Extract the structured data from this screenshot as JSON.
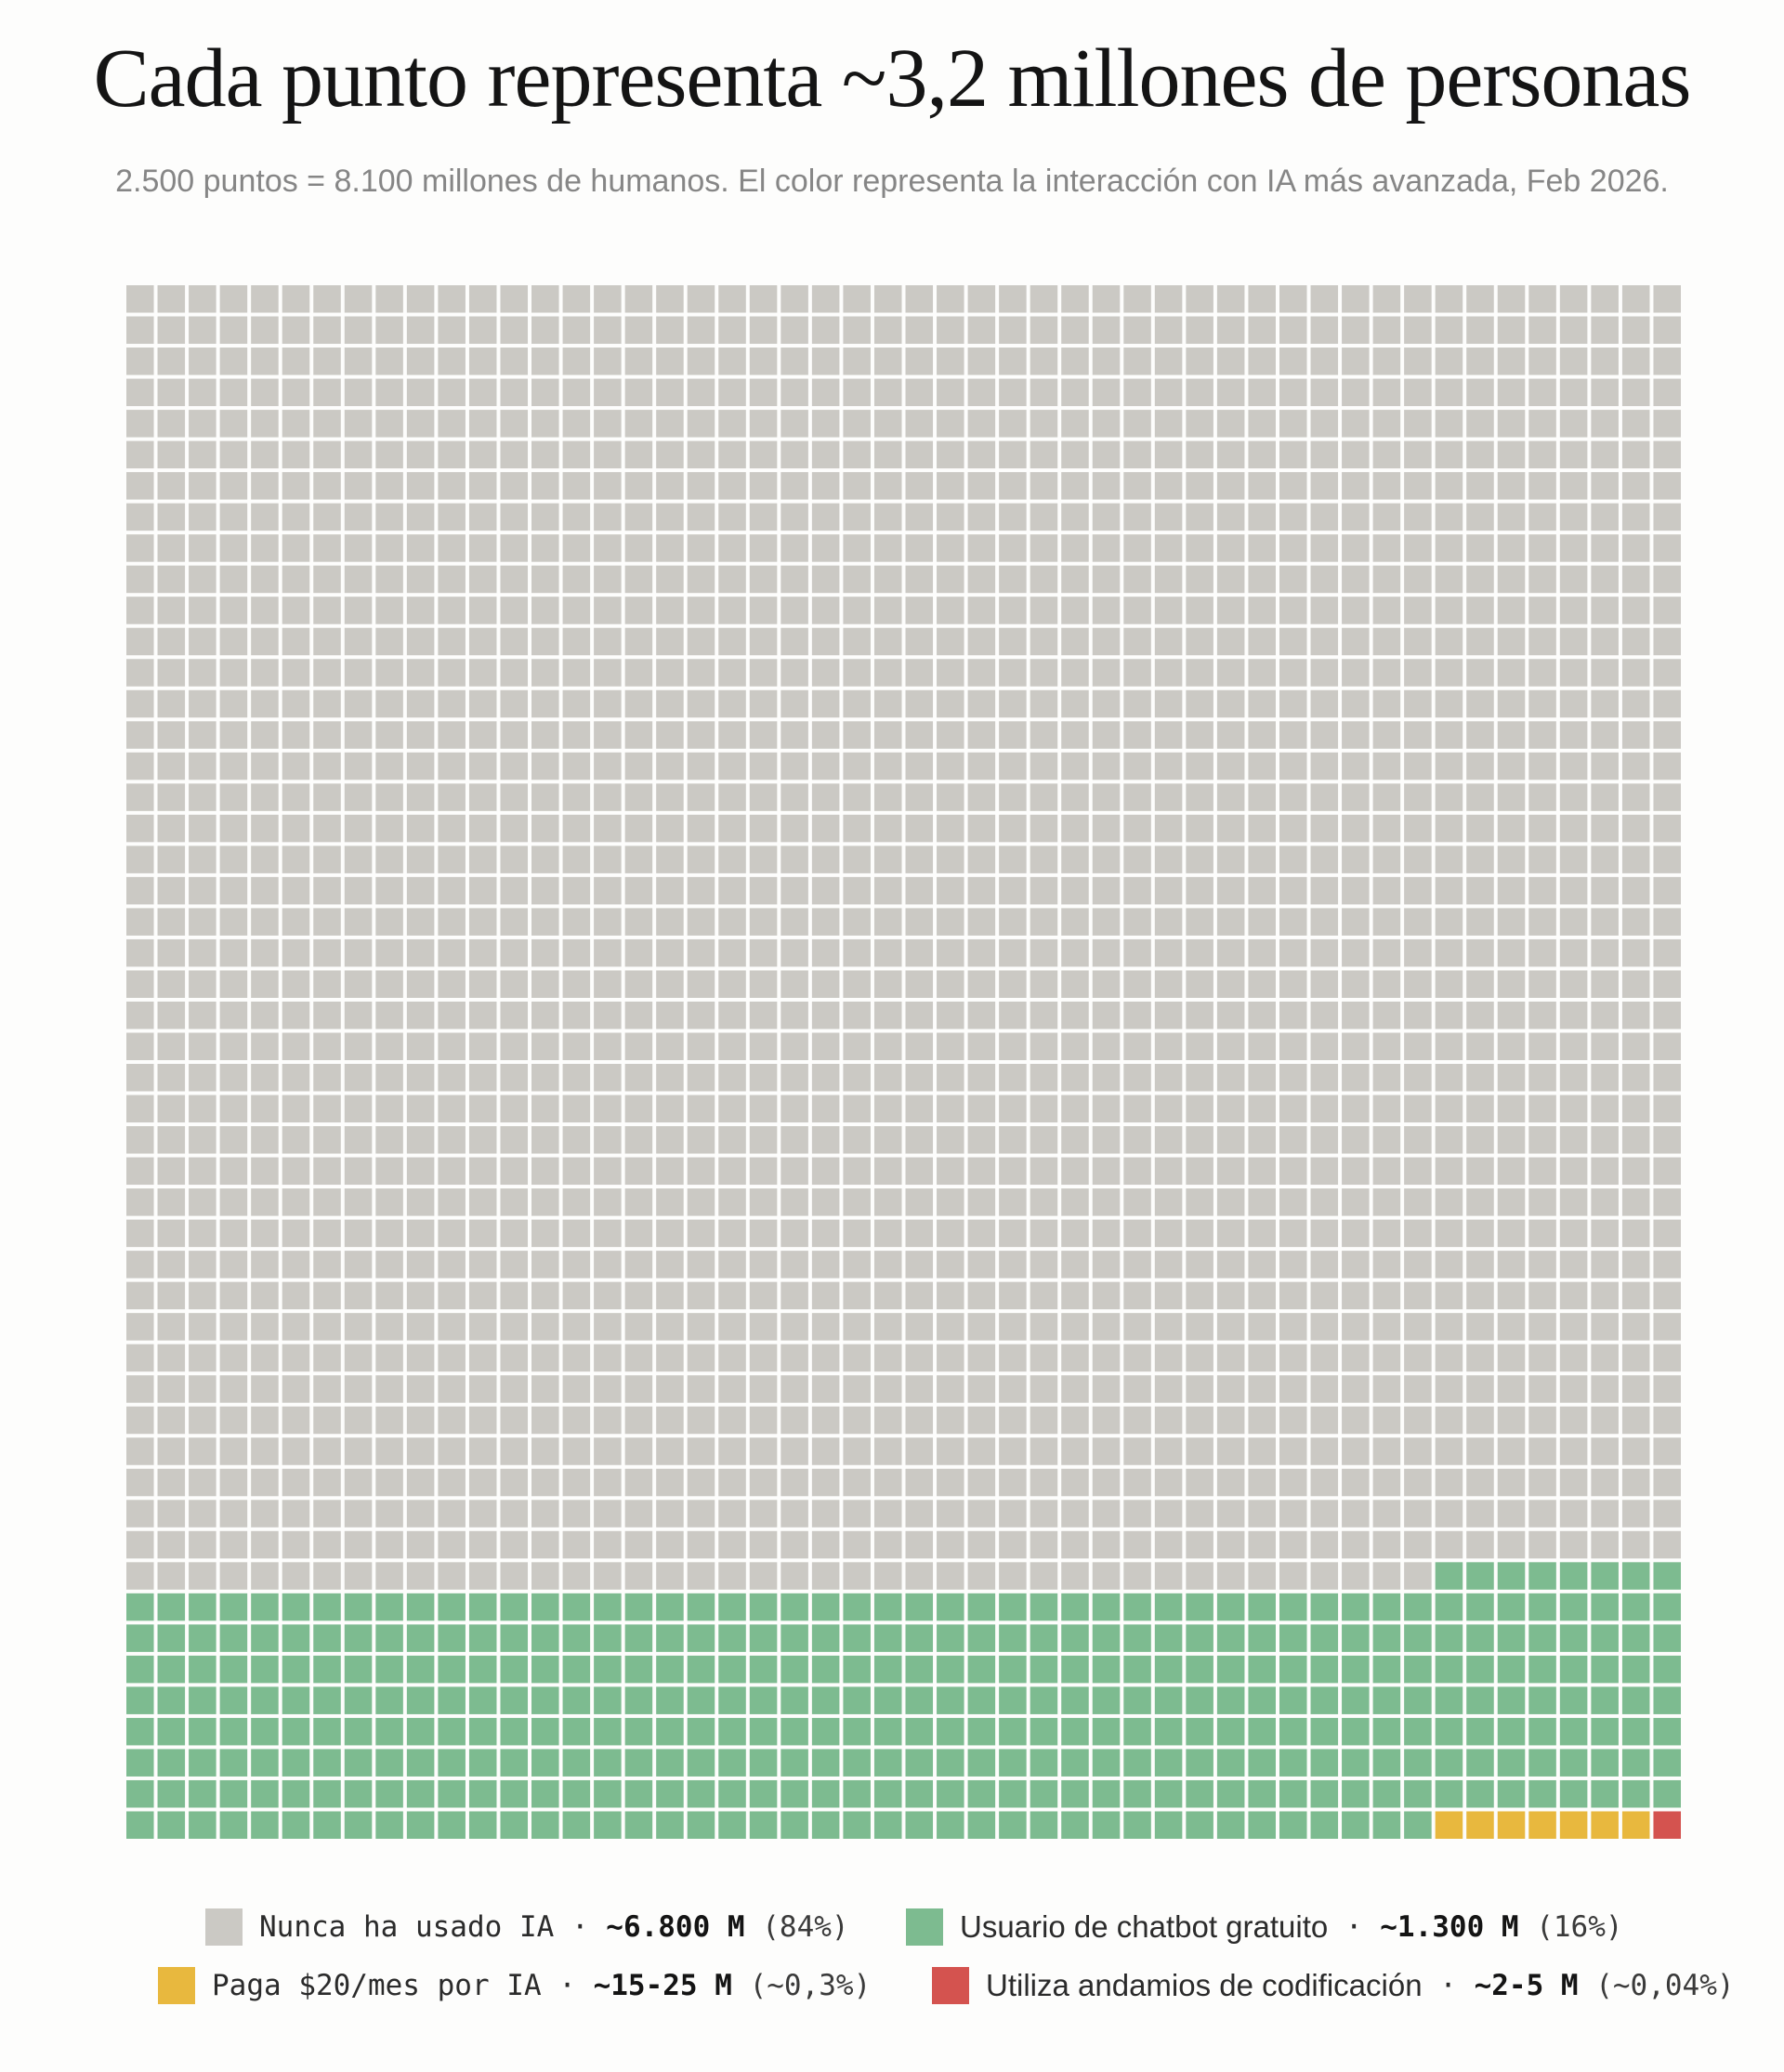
{
  "title": "Cada punto representa ~3,2 millones de personas",
  "subtitle": "2.500 puntos = 8.100 millones de humanos. El color representa la interacción con IA más avanzada, Feb 2026.",
  "colors": {
    "gray": "#cbc9c4",
    "green": "#7dbb90",
    "yellow": "#e8b83e",
    "red": "#d4534f"
  },
  "legend": [
    {
      "label": "Nunca ha usado IA",
      "sep": " · ",
      "value": "~6.800 M",
      "pct": " (84%)",
      "color": "#cbc9c4"
    },
    {
      "label": "Usuario de chatbot gratuito",
      "sep": " · ",
      "value": "~1.300 M",
      "pct": " (16%)",
      "color": "#7dbb90"
    },
    {
      "label": "Paga $20/mes por IA",
      "sep": " · ",
      "value": "~15-25 M",
      "pct": " (~0,3%)",
      "color": "#e8b83e"
    },
    {
      "label": "Utiliza andamios de codificación",
      "sep": " · ",
      "value": "~2-5 M",
      "pct": " (~0,04%)",
      "color": "#d4534f"
    }
  ],
  "chart_data": {
    "type": "waffle",
    "total_points": 2500,
    "columns": 50,
    "rows": 50,
    "series": [
      {
        "name": "Nunca ha usado IA",
        "points": 2092,
        "color": "#cbc9c4"
      },
      {
        "name": "Usuario de chatbot gratuito",
        "points": 400,
        "color": "#7dbb90"
      },
      {
        "name": "Paga $20/mes por IA",
        "points": 7,
        "color": "#e8b83e"
      },
      {
        "name": "Utiliza andamios de codificación",
        "points": 1,
        "color": "#d4534f"
      }
    ],
    "fill_order": "from bottom-right, right-to-left along rows, upward"
  }
}
